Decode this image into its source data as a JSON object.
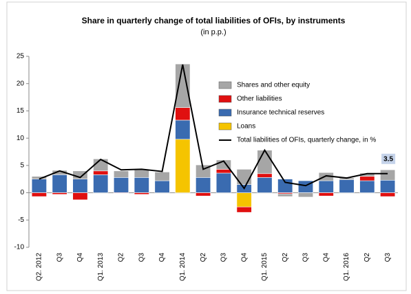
{
  "chart_data": {
    "type": "bar",
    "stacked": true,
    "title": "Share in quarterly change of total liabilities of OFIs, by instruments",
    "subtitle": "(in p.p.)",
    "categories": [
      "Q2. 2012",
      "Q3",
      "Q4",
      "Q1. 2013",
      "Q2",
      "Q3",
      "Q4",
      "Q1. 2014",
      "Q2",
      "Q3",
      "Q4",
      "Q1. 2015",
      "Q2",
      "Q3",
      "Q4",
      "Q1. 2016",
      "Q2",
      "Q3"
    ],
    "series": [
      {
        "name": "Loans",
        "color": "#f5c400",
        "values": [
          0,
          0,
          0,
          0,
          0,
          0,
          0,
          9.8,
          0,
          0,
          -2.6,
          0,
          0,
          0,
          0,
          0,
          0,
          0
        ]
      },
      {
        "name": "Insurance technical reserves",
        "color": "#3a6bb0",
        "values": [
          2.5,
          3.3,
          2.5,
          3.3,
          2.8,
          2.8,
          2.2,
          3.5,
          2.8,
          3.6,
          1.5,
          2.8,
          2.5,
          2.2,
          2.2,
          2.4,
          2.2,
          2.3
        ]
      },
      {
        "name": "Other liabilities",
        "color": "#e01010",
        "values": [
          -0.7,
          -0.3,
          -1.3,
          0.7,
          -0.1,
          -0.3,
          0,
          2.3,
          -0.6,
          0.7,
          -1,
          0.7,
          -0.2,
          0,
          -0.6,
          0,
          0.8,
          -0.7
        ]
      },
      {
        "name": "Shares and other equity",
        "color": "#a6a6a6",
        "values": [
          0.5,
          0.8,
          1.5,
          2.2,
          1.2,
          1.5,
          1.6,
          8,
          2.3,
          1.7,
          2.8,
          4.3,
          -0.5,
          -0.8,
          1.5,
          0.3,
          0.6,
          1.9
        ]
      },
      {
        "name": "Total liabilities of OFIs, quarterly change, in %",
        "type": "line",
        "color": "#000000",
        "values": [
          2.5,
          4,
          2.8,
          6.1,
          4.2,
          4.3,
          3.9,
          23.5,
          4.3,
          5.8,
          0.8,
          7.8,
          1.9,
          1.3,
          3.1,
          2.7,
          3.5,
          3.5
        ]
      }
    ],
    "ylim": [
      -10,
      25
    ],
    "yticks": [
      -10,
      -5,
      0,
      5,
      10,
      15,
      20,
      25
    ]
  }
}
